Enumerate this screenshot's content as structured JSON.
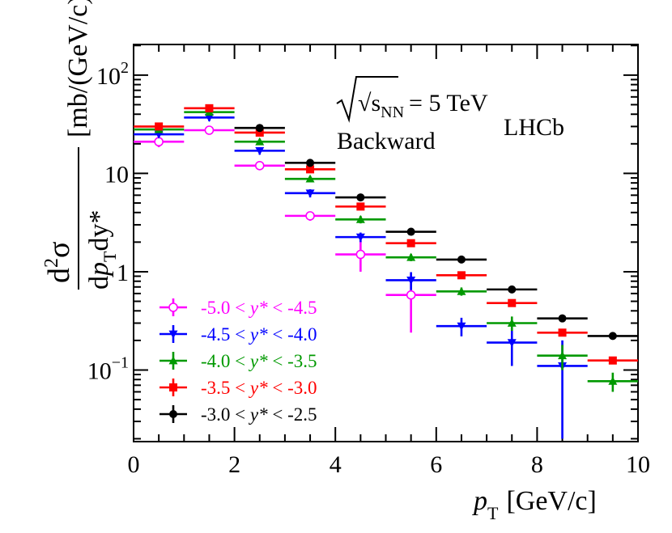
{
  "chart_data": {
    "type": "scatter",
    "xlabel": "[GeV/c]",
    "x_var": "p",
    "x_var_sub": "T",
    "ylabel_unit": "[mb/(GeV/c)]",
    "y_num": "d",
    "y_num_sup": "2",
    "y_num_sym": "σ",
    "y_den_d1": "d",
    "y_den_p": "p",
    "y_den_sub": "T",
    "y_den_d2": "dy*",
    "xlim": [
      0,
      10
    ],
    "ylim": [
      0.02,
      200
    ],
    "yscale": "log",
    "x_ticks": [
      "0",
      "2",
      "4",
      "6",
      "8",
      "10"
    ],
    "y_ticks": [
      {
        "base": "10",
        "exp": "2",
        "value": 100
      },
      {
        "base": "10",
        "exp": "",
        "value": 10
      },
      {
        "base": "1",
        "exp": "",
        "value": 1
      },
      {
        "base": "10",
        "exp": "−1",
        "value": 0.1
      }
    ],
    "annotations": {
      "energy": "√s",
      "energy_sub": "NN",
      "energy_rest": "= 5 TeV",
      "direction": "Backward",
      "experiment": "LHCb"
    },
    "legend_position": "bottom-left",
    "series": [
      {
        "name": "-5.0 < y* < -4.5",
        "pre": "-5.0 <",
        "var": "y*",
        "post": "< -4.5",
        "color": "#ff00ff",
        "marker": "open-circle",
        "x": [
          0.5,
          1.5,
          2.5,
          3.5,
          4.5,
          5.5
        ],
        "y": [
          21,
          27.5,
          12,
          3.7,
          1.5,
          0.58
        ],
        "y_lo": [
          18.5,
          25,
          11,
          3.3,
          1.0,
          0.24
        ],
        "y_hi": [
          23.5,
          30,
          13,
          4.1,
          2.05,
          0.95
        ]
      },
      {
        "name": "-4.5 < y* < -4.0",
        "pre": "-4.5 <",
        "var": "y*",
        "post": "< -4.0",
        "color": "#0000ff",
        "marker": "down-triangle",
        "x": [
          0.5,
          1.5,
          2.5,
          3.5,
          4.5,
          5.5,
          6.5,
          7.5,
          8.5
        ],
        "y": [
          25,
          37,
          17,
          6.3,
          2.25,
          0.82,
          0.28,
          0.19,
          0.11
        ],
        "y_lo": [
          23,
          34,
          15.5,
          5.7,
          2.0,
          0.65,
          0.22,
          0.11,
          0.02
        ],
        "y_hi": [
          27,
          40,
          18.5,
          6.9,
          2.5,
          0.99,
          0.34,
          0.27,
          0.2
        ]
      },
      {
        "name": "-4.0 < y* < -3.5",
        "pre": "-4.0 <",
        "var": "y*",
        "post": "< -3.5",
        "color": "#009900",
        "marker": "up-triangle",
        "x": [
          0.5,
          1.5,
          2.5,
          3.5,
          4.5,
          5.5,
          6.5,
          7.5,
          8.5,
          9.5
        ],
        "y": [
          28,
          42,
          21,
          8.8,
          3.4,
          1.4,
          0.63,
          0.3,
          0.14,
          0.077
        ],
        "y_lo": [
          26,
          39,
          19.5,
          8.2,
          3.1,
          1.28,
          0.57,
          0.25,
          0.1,
          0.06
        ],
        "y_hi": [
          30,
          45,
          22.5,
          9.4,
          3.7,
          1.52,
          0.69,
          0.35,
          0.18,
          0.094
        ]
      },
      {
        "name": "-3.5 < y* < -3.0",
        "pre": "-3.5 <",
        "var": "y*",
        "post": "< -3.0",
        "color": "#ff0000",
        "marker": "square",
        "x": [
          0.5,
          1.5,
          2.5,
          3.5,
          4.5,
          5.5,
          6.5,
          7.5,
          8.5,
          9.5
        ],
        "y": [
          30,
          46,
          26,
          11,
          4.6,
          1.95,
          0.92,
          0.48,
          0.24,
          0.125
        ],
        "y_lo": [
          28,
          43,
          24.5,
          10.3,
          4.3,
          1.82,
          0.86,
          0.45,
          0.22,
          0.115
        ],
        "y_hi": [
          32,
          49,
          27.5,
          11.7,
          4.9,
          2.08,
          0.98,
          0.51,
          0.26,
          0.135
        ]
      },
      {
        "name": "-3.0 < y* < -2.5",
        "pre": "-3.0 <",
        "var": "y*",
        "post": "< -2.5",
        "color": "#000000",
        "marker": "filled-circle",
        "x": [
          2.5,
          3.5,
          4.5,
          5.5,
          6.5,
          7.5,
          8.5,
          9.5
        ],
        "y": [
          29,
          12.8,
          5.7,
          2.55,
          1.33,
          0.66,
          0.335,
          0.222
        ],
        "y_lo": [
          28,
          12.3,
          5.5,
          2.45,
          1.28,
          0.63,
          0.32,
          0.21
        ],
        "y_hi": [
          30,
          13.3,
          5.9,
          2.65,
          1.38,
          0.69,
          0.35,
          0.234
        ]
      }
    ]
  }
}
